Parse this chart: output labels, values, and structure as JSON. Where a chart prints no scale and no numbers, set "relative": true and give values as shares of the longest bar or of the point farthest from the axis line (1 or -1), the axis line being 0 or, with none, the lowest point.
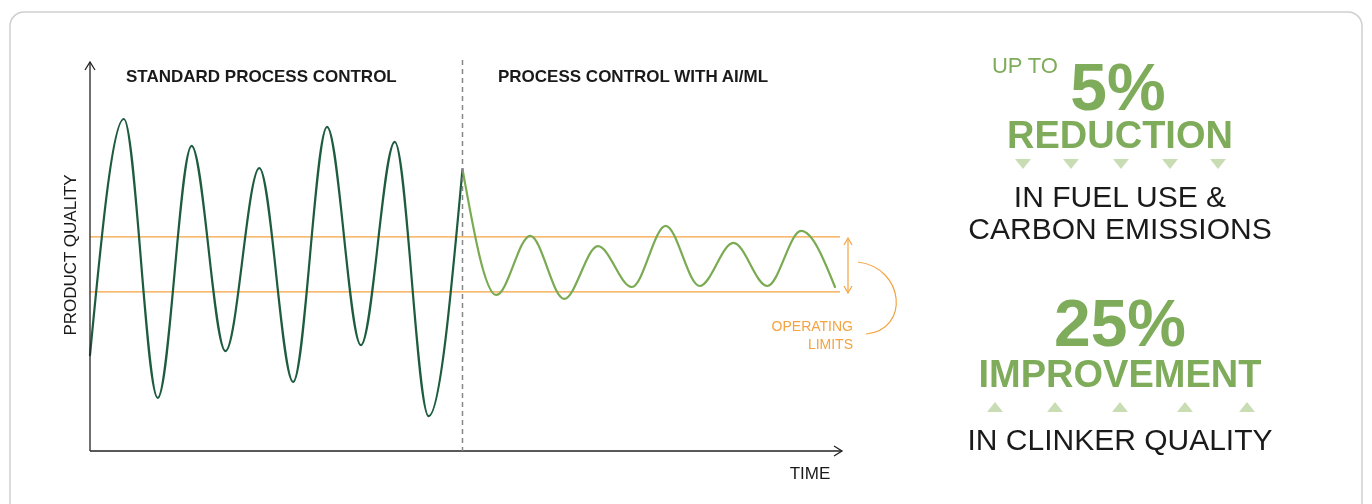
{
  "chart_data": {
    "type": "line",
    "relative": true,
    "xlabel": "TIME",
    "ylabel": "PRODUCT QUALITY",
    "categories": [
      null,
      null,
      null,
      null,
      null,
      null,
      null,
      null,
      null,
      null,
      null,
      null,
      null,
      null,
      null,
      null,
      null,
      null,
      null,
      null,
      null,
      null,
      null
    ],
    "series": [
      {
        "color": "#1d5c3f",
        "values": [
          0.289,
          1.0,
          0.16,
          0.919,
          0.301,
          0.852,
          0.208,
          0.976,
          0.319,
          0.931,
          0.105,
          0.849,
          null,
          null,
          null,
          null,
          null,
          null,
          null,
          null,
          null,
          null,
          null
        ]
      },
      {
        "color": "#7aaa52",
        "values": [
          null,
          null,
          null,
          null,
          null,
          null,
          null,
          null,
          null,
          null,
          null,
          0.849,
          0.47,
          0.648,
          0.458,
          0.617,
          0.494,
          0.678,
          0.497,
          0.627,
          0.497,
          0.663,
          0.494
        ]
      }
    ],
    "ref_lines": [
      {
        "axis": "y",
        "value": 0.645,
        "color": "#f4a340",
        "line_style": "solid"
      },
      {
        "axis": "y",
        "value": 0.479,
        "color": "#f4a340",
        "line_style": "solid"
      }
    ],
    "annotations": [
      "STANDARD PROCESS CONTROL",
      "PROCESS CONTROL WITH AI/ML",
      "OPERATING LIMITS",
      "UP TO",
      "5%",
      "REDUCTION",
      "IN FUEL USE & CARBON EMISSIONS",
      "25%",
      "IMPROVEMENT",
      "IN CLINKER QUALITY"
    ]
  }
}
